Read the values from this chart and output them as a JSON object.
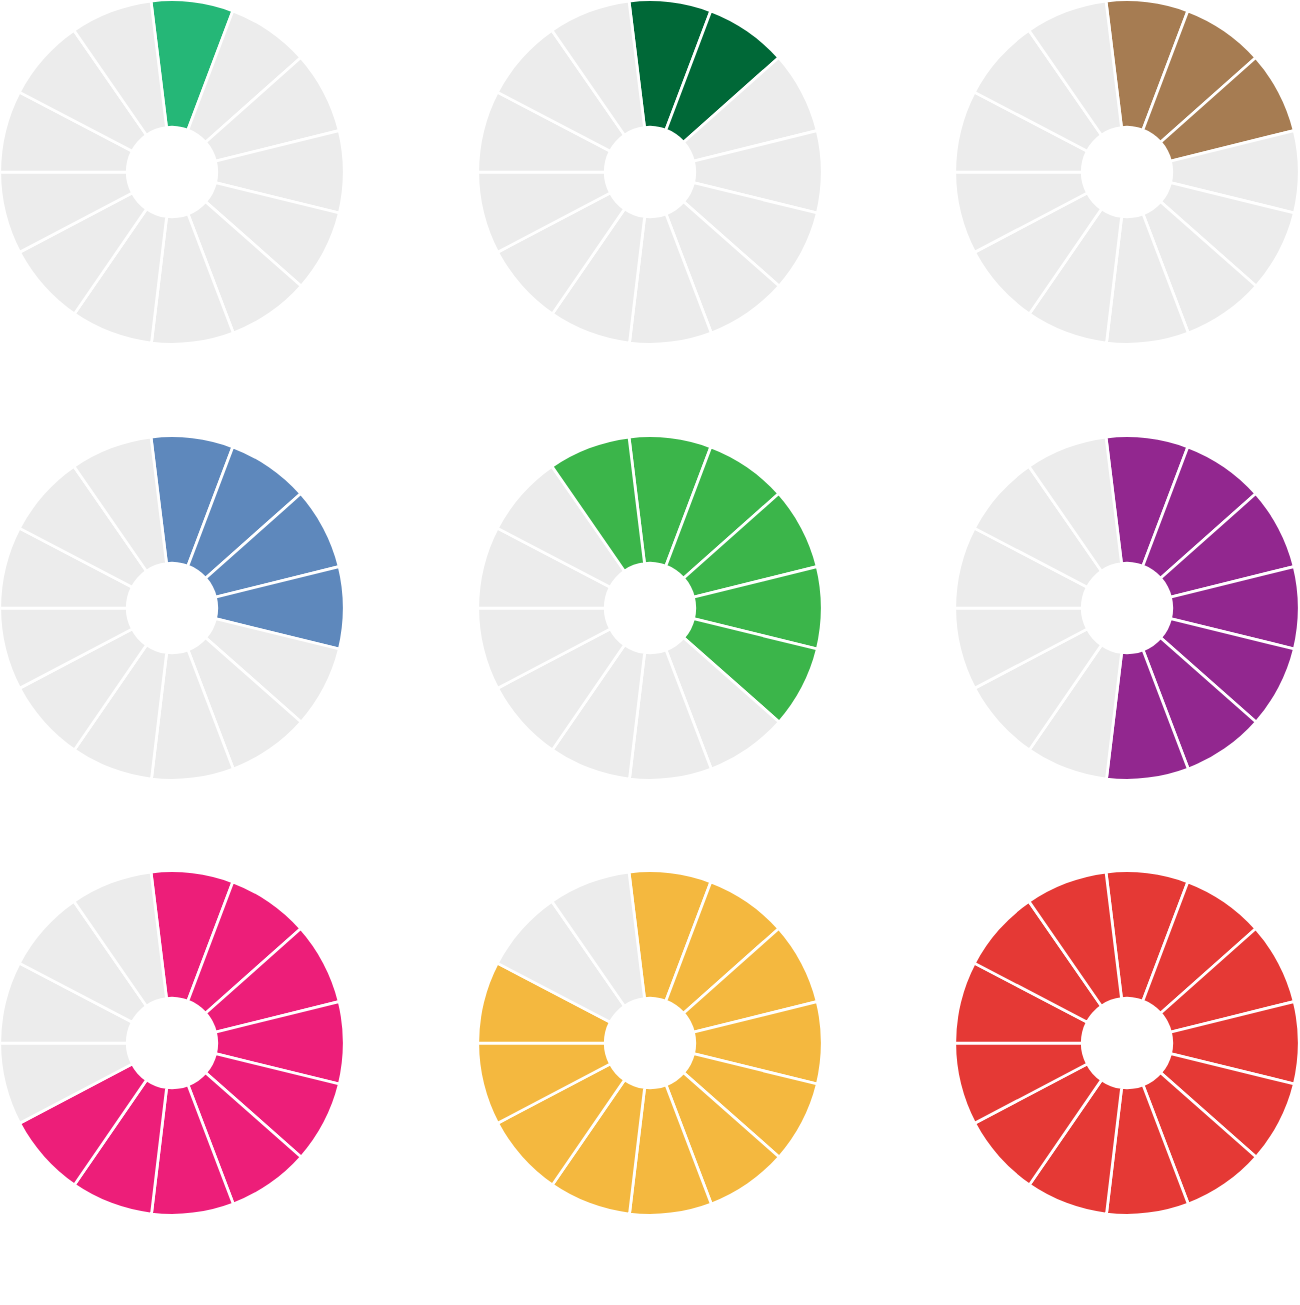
{
  "chart_data": [
    {
      "type": "donut",
      "categories": [
        null,
        null,
        null,
        null,
        null,
        null,
        null,
        null,
        null,
        null,
        null,
        null,
        null
      ],
      "values": [
        7.69,
        7.69,
        7.69,
        7.69,
        7.69,
        7.69,
        7.69,
        7.69,
        7.69,
        7.69,
        7.69,
        7.69,
        7.69
      ],
      "colors": [
        "#25b777",
        "#ececec",
        "#ececec",
        "#ececec",
        "#ececec",
        "#ececec",
        "#ececec",
        "#ececec",
        "#ececec",
        "#ececec",
        "#ececec",
        "#ececec",
        "#ececec"
      ]
    },
    {
      "type": "donut",
      "categories": [
        null,
        null,
        null,
        null,
        null,
        null,
        null,
        null,
        null,
        null,
        null,
        null,
        null
      ],
      "values": [
        7.69,
        7.69,
        7.69,
        7.69,
        7.69,
        7.69,
        7.69,
        7.69,
        7.69,
        7.69,
        7.69,
        7.69,
        7.69
      ],
      "colors": [
        "#006837",
        "#006837",
        "#ececec",
        "#ececec",
        "#ececec",
        "#ececec",
        "#ececec",
        "#ececec",
        "#ececec",
        "#ececec",
        "#ececec",
        "#ececec",
        "#ececec"
      ]
    },
    {
      "type": "donut",
      "categories": [
        null,
        null,
        null,
        null,
        null,
        null,
        null,
        null,
        null,
        null,
        null,
        null,
        null
      ],
      "values": [
        7.69,
        7.69,
        7.69,
        7.69,
        7.69,
        7.69,
        7.69,
        7.69,
        7.69,
        7.69,
        7.69,
        7.69,
        7.69
      ],
      "colors": [
        "#a67c52",
        "#a67c52",
        "#a67c52",
        "#ececec",
        "#ececec",
        "#ececec",
        "#ececec",
        "#ececec",
        "#ececec",
        "#ececec",
        "#ececec",
        "#ececec",
        "#ececec"
      ]
    },
    {
      "type": "donut",
      "categories": [
        null,
        null,
        null,
        null,
        null,
        null,
        null,
        null,
        null,
        null,
        null,
        null,
        null
      ],
      "values": [
        7.69,
        7.69,
        7.69,
        7.69,
        7.69,
        7.69,
        7.69,
        7.69,
        7.69,
        7.69,
        7.69,
        7.69,
        7.69
      ],
      "colors": [
        "#5e88bc",
        "#5e88bc",
        "#5e88bc",
        "#5e88bc",
        "#ececec",
        "#ececec",
        "#ececec",
        "#ececec",
        "#ececec",
        "#ececec",
        "#ececec",
        "#ececec",
        "#ececec"
      ]
    },
    {
      "type": "donut",
      "categories": [
        null,
        null,
        null,
        null,
        null,
        null,
        null,
        null,
        null,
        null,
        null,
        null,
        null
      ],
      "values": [
        7.69,
        7.69,
        7.69,
        7.69,
        7.69,
        7.69,
        7.69,
        7.69,
        7.69,
        7.69,
        7.69,
        7.69,
        7.69
      ],
      "colors": [
        "#3bb54a",
        "#3bb54a",
        "#3bb54a",
        "#3bb54a",
        "#3bb54a",
        "#ececec",
        "#ececec",
        "#ececec",
        "#ececec",
        "#ececec",
        "#ececec",
        "#ececec",
        "#3bb54a"
      ]
    },
    {
      "type": "donut",
      "categories": [
        null,
        null,
        null,
        null,
        null,
        null,
        null,
        null,
        null,
        null,
        null,
        null,
        null
      ],
      "values": [
        7.69,
        7.69,
        7.69,
        7.69,
        7.69,
        7.69,
        7.69,
        7.69,
        7.69,
        7.69,
        7.69,
        7.69,
        7.69
      ],
      "colors": [
        "#92278f",
        "#92278f",
        "#92278f",
        "#92278f",
        "#92278f",
        "#92278f",
        "#92278f",
        "#ececec",
        "#ececec",
        "#ececec",
        "#ececec",
        "#ececec",
        "#ececec"
      ]
    },
    {
      "type": "donut",
      "categories": [
        null,
        null,
        null,
        null,
        null,
        null,
        null,
        null,
        null,
        null,
        null,
        null,
        null
      ],
      "values": [
        7.69,
        7.69,
        7.69,
        7.69,
        7.69,
        7.69,
        7.69,
        7.69,
        7.69,
        7.69,
        7.69,
        7.69,
        7.69
      ],
      "colors": [
        "#ed1e79",
        "#ed1e79",
        "#ed1e79",
        "#ed1e79",
        "#ed1e79",
        "#ed1e79",
        "#ed1e79",
        "#ed1e79",
        "#ed1e79",
        "#ececec",
        "#ececec",
        "#ececec",
        "#ececec"
      ]
    },
    {
      "type": "donut",
      "categories": [
        null,
        null,
        null,
        null,
        null,
        null,
        null,
        null,
        null,
        null,
        null,
        null,
        null
      ],
      "values": [
        7.69,
        7.69,
        7.69,
        7.69,
        7.69,
        7.69,
        7.69,
        7.69,
        7.69,
        7.69,
        7.69,
        7.69,
        7.69
      ],
      "colors": [
        "#f4b83f",
        "#f4b83f",
        "#f4b83f",
        "#f4b83f",
        "#f4b83f",
        "#f4b83f",
        "#f4b83f",
        "#f4b83f",
        "#f4b83f",
        "#f4b83f",
        "#f4b83f",
        "#ececec",
        "#ececec"
      ]
    },
    {
      "type": "donut",
      "categories": [
        null,
        null,
        null,
        null,
        null,
        null,
        null,
        null,
        null,
        null,
        null,
        null,
        null
      ],
      "values": [
        7.69,
        7.69,
        7.69,
        7.69,
        7.69,
        7.69,
        7.69,
        7.69,
        7.69,
        7.69,
        7.69,
        7.69,
        7.69
      ],
      "colors": [
        "#e53935",
        "#e53935",
        "#e53935",
        "#e53935",
        "#e53935",
        "#e53935",
        "#e53935",
        "#e53935",
        "#e53935",
        "#e53935",
        "#e53935",
        "#e53935",
        "#e53935"
      ]
    }
  ]
}
